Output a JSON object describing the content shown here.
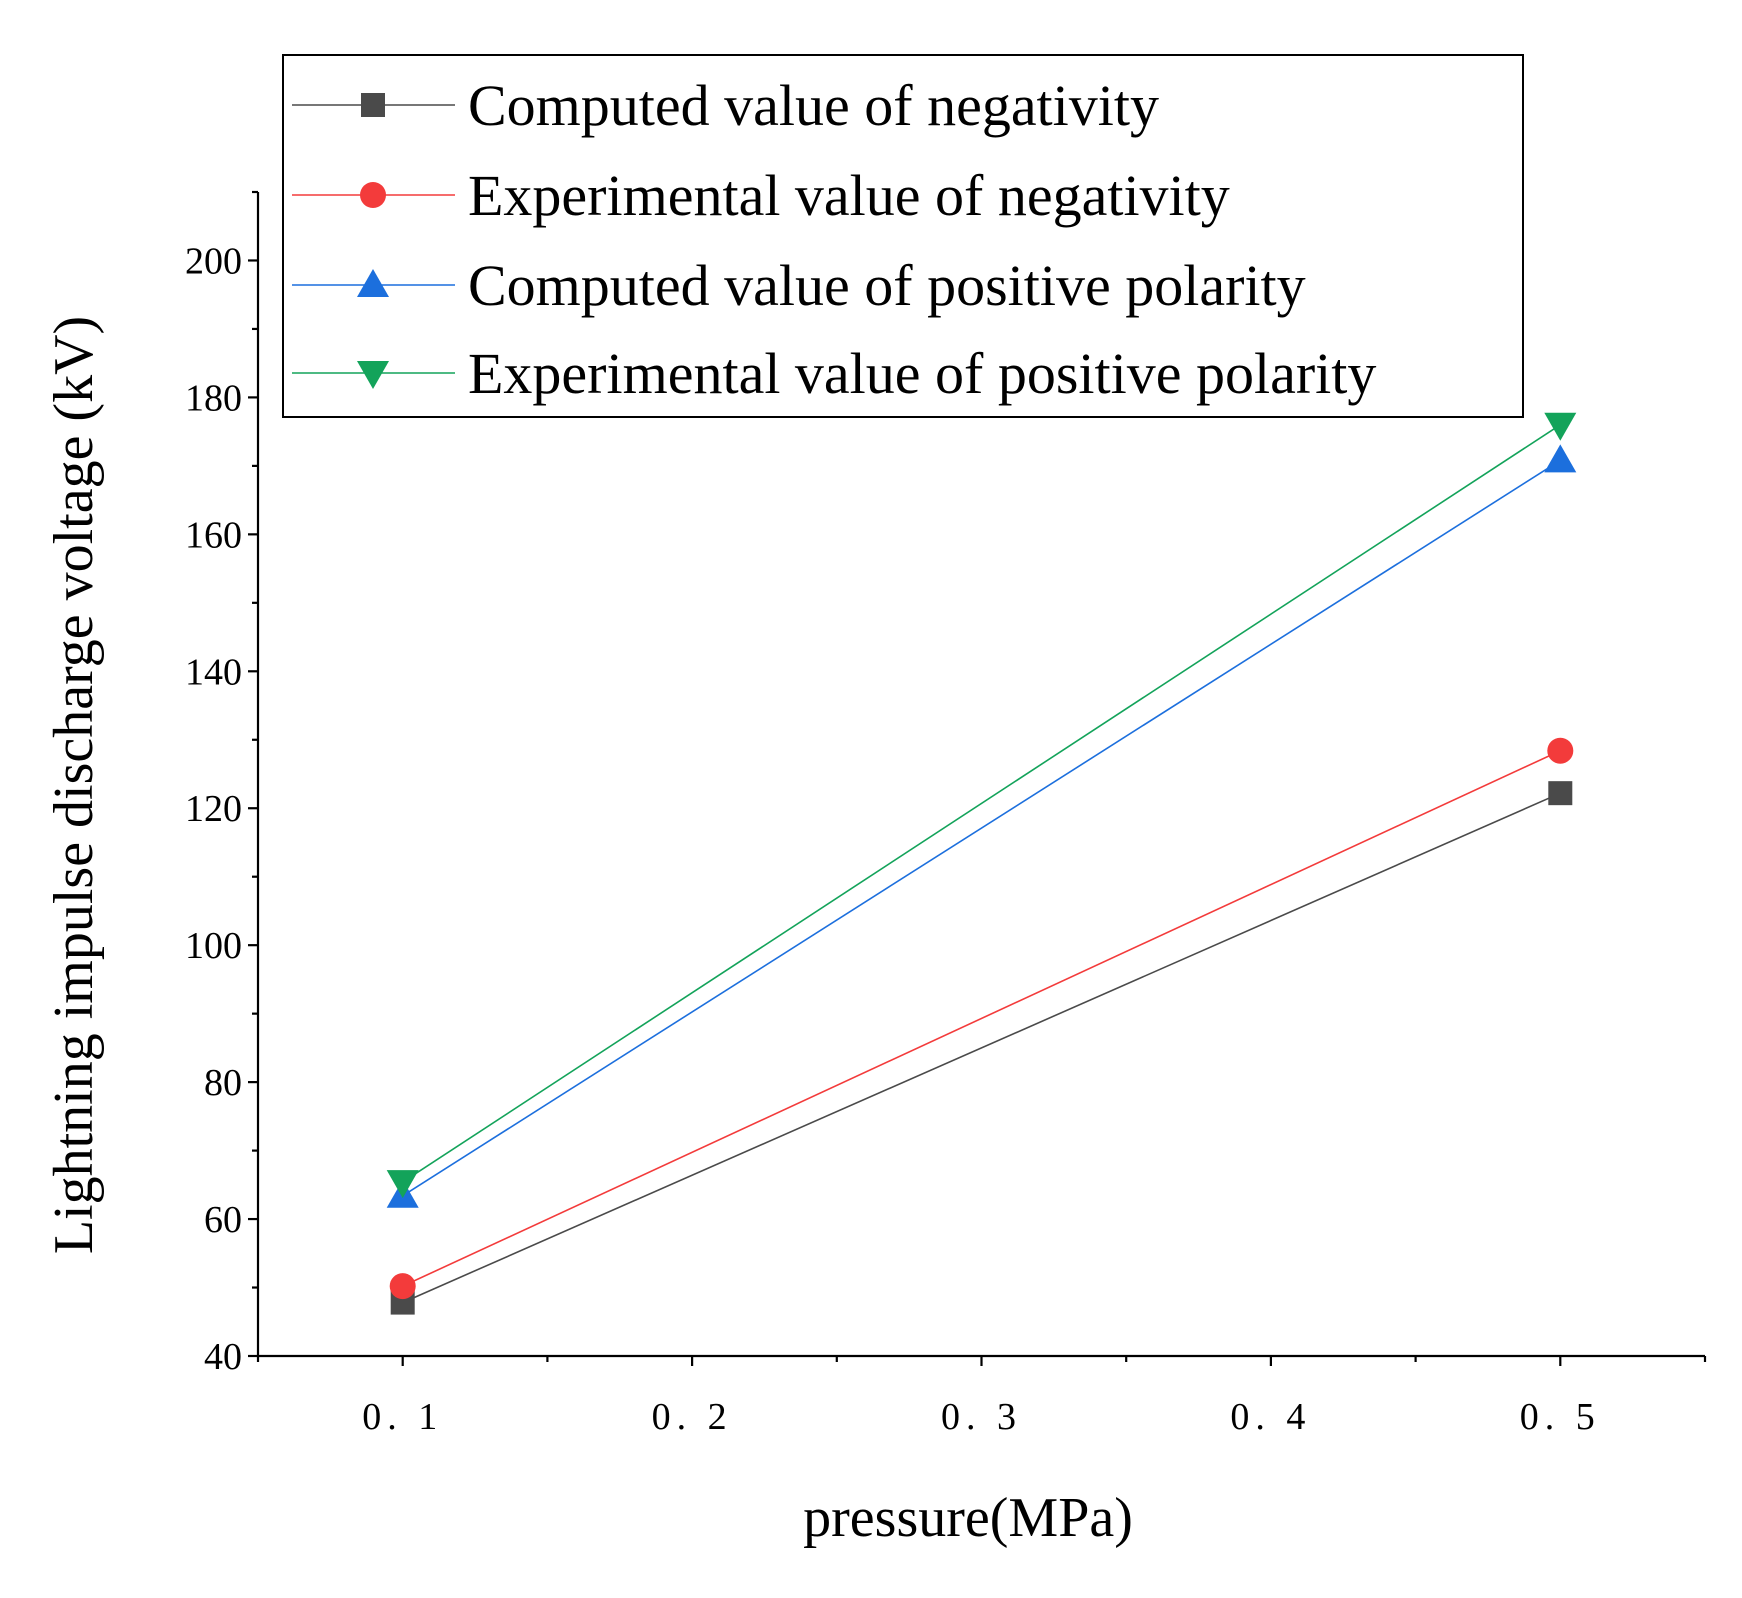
{
  "chart_data": {
    "type": "line",
    "title": "",
    "xlabel": "pressure(MPa)",
    "ylabel": "Lightning impulse discharge voltage (kV)",
    "xlim": [
      0.05,
      0.55
    ],
    "ylim": [
      40,
      210
    ],
    "x_ticks": [
      0.1,
      0.2,
      0.3,
      0.4,
      0.5
    ],
    "x_tick_labels": [
      "0. 1",
      "0. 2",
      "0. 3",
      "0. 4",
      "0. 5"
    ],
    "y_ticks": [
      40,
      60,
      80,
      100,
      120,
      140,
      160,
      180,
      200
    ],
    "y_tick_labels": [
      "40",
      "60",
      "80",
      "100",
      "120",
      "140",
      "160",
      "180",
      "200"
    ],
    "grid": false,
    "legend_position": "top",
    "series": [
      {
        "name": "Computed value of negativity",
        "x": [
          0.1,
          0.5
        ],
        "values": [
          47.8,
          122.2
        ],
        "color": "#4a4a4a",
        "marker": "square"
      },
      {
        "name": "Experimental value of negativity",
        "x": [
          0.1,
          0.5
        ],
        "values": [
          50.2,
          128.4
        ],
        "color": "#f33b3b",
        "marker": "circle"
      },
      {
        "name": "Computed value of positive polarity",
        "x": [
          0.1,
          0.5
        ],
        "values": [
          63.4,
          170.8
        ],
        "color": "#1c6fdd",
        "marker": "triangle-up"
      },
      {
        "name": "Experimental value of positive polarity",
        "x": [
          0.1,
          0.5
        ],
        "values": [
          65.4,
          176.0
        ],
        "color": "#13a35a",
        "marker": "triangle-down"
      }
    ]
  }
}
